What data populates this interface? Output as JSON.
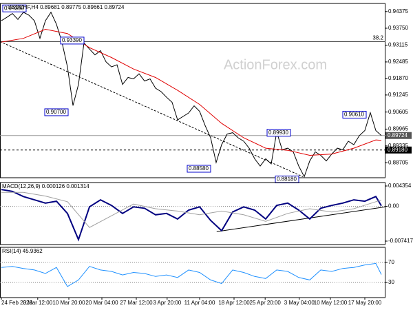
{
  "chart_data": [
    {
      "type": "line",
      "title": "USDCHF,H4  0.89681 0.89775 0.89661 0.89724",
      "watermark": "ActionForex.com",
      "xlim": [
        -0.25,
        69.75
      ],
      "ylim": [
        0.8814,
        0.9468
      ],
      "yticks": [
        0.94375,
        {
          "value": 0.9375,
          "label": "0.93750"
        },
        0.93115,
        0.92485,
        {
          "value": 0.9187,
          "label": "0.91870"
        },
        0.91245,
        0.90605,
        0.89965,
        0.89335,
        0.88705
      ],
      "series": [
        {
          "color": "#000000",
          "x": [
            0,
            1,
            2,
            3,
            4,
            5,
            6,
            7,
            8,
            9,
            10,
            11,
            12,
            13,
            14,
            15,
            16,
            17,
            18,
            19,
            20,
            21,
            22,
            23,
            24,
            25,
            26,
            27,
            28,
            29,
            30,
            31,
            32,
            33,
            34,
            35,
            36,
            37,
            38,
            39,
            40,
            41,
            42,
            43,
            44,
            45,
            46,
            47,
            48,
            49,
            50,
            51,
            52,
            53,
            54,
            55,
            56,
            57,
            58,
            59,
            60,
            61,
            62,
            63,
            64,
            65,
            66,
            67,
            68,
            69
          ],
          "values": [
            0.9403,
            0.9416,
            0.943,
            0.9408,
            0.9435,
            0.9424,
            0.9403,
            0.9337,
            0.9403,
            0.9435,
            0.939,
            0.9323,
            0.923,
            0.9085,
            0.9164,
            0.932,
            0.9297,
            0.9275,
            0.9291,
            0.9249,
            0.923,
            0.9238,
            0.9164,
            0.919,
            0.9185,
            0.9204,
            0.9177,
            0.9185,
            0.915,
            0.9137,
            0.9116,
            0.9097,
            0.9031,
            0.9044,
            0.9057,
            0.9084,
            0.9063,
            0.901,
            0.8964,
            0.8871,
            0.8938,
            0.8978,
            0.8983,
            0.8964,
            0.8951,
            0.8925,
            0.8885,
            0.8858,
            0.8885,
            0.8866,
            0.8985,
            0.8919,
            0.8925,
            0.8911,
            0.8858,
            0.8818,
            0.8877,
            0.8911,
            0.8898,
            0.8877,
            0.8903,
            0.8925,
            0.8919,
            0.8951,
            0.8938,
            0.8972,
            0.8991,
            0.9058,
            0.8991,
            0.89724
          ]
        },
        {
          "color": "#e00000",
          "x": [
            0,
            4,
            8,
            12,
            16,
            20,
            24,
            28,
            32,
            36,
            40,
            44,
            48,
            52,
            56,
            60,
            64,
            68,
            69
          ],
          "values": [
            0.9323,
            0.9337,
            0.9371,
            0.9355,
            0.9302,
            0.9265,
            0.9222,
            0.919,
            0.9142,
            0.9089,
            0.9018,
            0.8964,
            0.8925,
            0.8917,
            0.8898,
            0.8903,
            0.8925,
            0.8956,
            0.8954
          ]
        }
      ],
      "trendline": {
        "x": [
          -0.25,
          54.75
        ],
        "values": [
          0.9325,
          0.8818
        ]
      },
      "fib_level": {
        "label": "38.2",
        "value": 0.9325
      },
      "annotations": [
        {
          "value": 0.9439,
          "label": "0.94390"
        },
        {
          "value": 0.9339,
          "label": "0.93390"
        },
        {
          "value": 0.907,
          "label": "0.90700"
        },
        {
          "value": 0.8858,
          "label": "0.88580"
        },
        {
          "value": 0.8993,
          "label": "0.89930"
        },
        {
          "value": 0.8818,
          "label": "0.88180"
        },
        {
          "value": 0.9061,
          "label": "0.90610"
        }
      ],
      "price_tags": [
        {
          "value": 0.89724,
          "label": "0.89724"
        },
        {
          "value": 0.8918,
          "label": "0.89180"
        }
      ]
    },
    {
      "type": "line",
      "title": "MACD(12,26,9) 0.000126 0.001314",
      "xlim": [
        -0.25,
        69.75
      ],
      "ylim": [
        -0.008153,
        0.00509
      ],
      "yticks": [
        0.004354,
        {
          "value": 0,
          "label": "0.00"
        },
        -0.007417
      ],
      "series": [
        {
          "color": "#000080",
          "x": [
            0,
            2,
            4,
            6,
            8,
            10,
            12,
            14,
            16,
            18,
            20,
            22,
            24,
            26,
            28,
            30,
            32,
            34,
            36,
            38,
            40,
            42,
            44,
            46,
            48,
            50,
            52,
            54,
            56,
            58,
            60,
            62,
            64,
            66,
            68,
            69
          ],
          "values": [
            0.0036,
            0.0032,
            0.0021,
            0.0014,
            0.0007,
            0.0011,
            -0.0015,
            -0.0071,
            -0.0001,
            0.0014,
            0.0002,
            -0.0015,
            -0.0001,
            -0.0004,
            -0.0018,
            -0.0015,
            -0.0027,
            -0.0008,
            -0.0001,
            -0.003,
            -0.0052,
            -0.0012,
            -0.0001,
            -0.0008,
            -0.0027,
            0.0002,
            0.0007,
            -0.0008,
            -0.0027,
            -0.0004,
            0.0002,
            0.0007,
            0.0014,
            0.0011,
            0.0021,
            0.000126
          ]
        },
        {
          "color": "#a0a0a0",
          "x": [
            0,
            4,
            8,
            12,
            16,
            20,
            24,
            28,
            32,
            36,
            40,
            44,
            48,
            52,
            56,
            60,
            64,
            68,
            69
          ],
          "values": [
            0.003,
            0.003,
            0.0022,
            0.001,
            -0.0045,
            -0.002,
            0.0005,
            -0.0005,
            -0.001,
            -0.0018,
            -0.001,
            -0.0018,
            -0.0032,
            -0.0015,
            -0.0005,
            -0.0012,
            -0.0005,
            0.001,
            0.001314
          ]
        }
      ],
      "trendline": {
        "x": [
          39.1,
          69.75
        ],
        "values": [
          -0.0054,
          -0.0001
        ]
      }
    },
    {
      "type": "line",
      "title": "RSI(14) 45.9362",
      "xlim": [
        -0.25,
        69.75
      ],
      "ylim": [
        0,
        100
      ],
      "yticks": [
        70,
        30
      ],
      "grid": true,
      "xticks": [
        {
          "value": 0,
          "label": "24 Feb 2023"
        },
        {
          "value": 6.6,
          "label": "3 Mar 12:00"
        },
        {
          "value": 12.25,
          "label": "10 Mar 20:00"
        },
        {
          "value": 18.25,
          "label": "20 Mar 04:00"
        },
        {
          "value": 24.5,
          "label": "27 Mar 12:00"
        },
        {
          "value": 30.1,
          "label": "3 Apr 20:00"
        },
        {
          "value": 36,
          "label": "11 Apr 04:00"
        },
        {
          "value": 42.25,
          "label": "18 Apr 12:00"
        },
        {
          "value": 47.9,
          "label": "25 Apr 20:00"
        },
        {
          "value": 54.1,
          "label": "3 May 04:00"
        },
        {
          "value": 59.75,
          "label": "10 May 12:00"
        },
        {
          "value": 66,
          "label": "17 May 20:00"
        }
      ],
      "series": [
        {
          "color": "#1e90ff",
          "x": [
            0,
            2,
            4,
            6,
            8,
            10,
            12,
            14,
            16,
            18,
            20,
            22,
            24,
            26,
            28,
            30,
            32,
            34,
            36,
            38,
            40,
            42,
            44,
            46,
            48,
            50,
            52,
            54,
            56,
            58,
            60,
            62,
            64,
            66,
            68,
            69
          ],
          "values": [
            60,
            62,
            58,
            55,
            48,
            60,
            22,
            35,
            62,
            55,
            52,
            45,
            50,
            48,
            42,
            45,
            40,
            55,
            50,
            35,
            28,
            55,
            50,
            42,
            38,
            55,
            52,
            40,
            35,
            55,
            52,
            58,
            60,
            65,
            68,
            45.9362
          ]
        }
      ]
    }
  ]
}
